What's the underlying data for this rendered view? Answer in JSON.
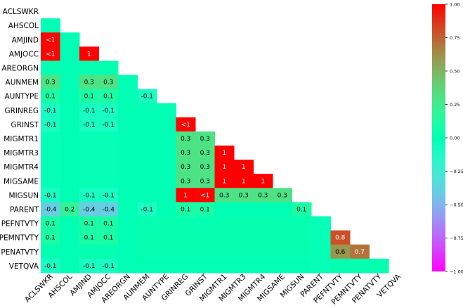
{
  "chart_data": {
    "type": "heatmap",
    "variables": [
      "ACLSWKR",
      "AHSCOL",
      "AMJIND",
      "AMJOCC",
      "AREORGN",
      "AUNMEM",
      "AUNTYPE",
      "GRINREG",
      "GRINST",
      "MIGMTR1",
      "MIGMTR3",
      "MIGMTR4",
      "MIGSAME",
      "MIGSUN",
      "PARENT",
      "PEFNTVTY",
      "PEMNTVTY",
      "PENATVTY",
      "VETQVA"
    ],
    "mask": "upper-triangle",
    "rows": [
      {
        "name": "ACLSWKR",
        "values": []
      },
      {
        "name": "AHSCOL",
        "values": [
          0
        ]
      },
      {
        "name": "AMJIND",
        "values": [
          0.99,
          0
        ]
      },
      {
        "name": "AMJOCC",
        "values": [
          0.99,
          0,
          1
        ]
      },
      {
        "name": "AREORGN",
        "values": [
          0.02,
          0,
          0.02,
          0.02
        ]
      },
      {
        "name": "AUNMEM",
        "values": [
          0.3,
          0,
          0.3,
          0.3,
          0
        ]
      },
      {
        "name": "AUNTYPE",
        "values": [
          0.1,
          0,
          0.1,
          0.1,
          0,
          -0.1
        ]
      },
      {
        "name": "GRINREG",
        "values": [
          -0.1,
          0,
          -0.1,
          -0.1,
          0,
          0,
          0
        ]
      },
      {
        "name": "GRINST",
        "values": [
          -0.1,
          0,
          -0.1,
          -0.1,
          0,
          0,
          0,
          0.99
        ]
      },
      {
        "name": "MIGMTR1",
        "values": [
          -0.02,
          0,
          -0.02,
          -0.02,
          0,
          0,
          0,
          0.3,
          0.3
        ]
      },
      {
        "name": "MIGMTR3",
        "values": [
          -0.02,
          0,
          -0.02,
          -0.02,
          0,
          0,
          0,
          0.3,
          0.3,
          1
        ]
      },
      {
        "name": "MIGMTR4",
        "values": [
          -0.02,
          0,
          -0.02,
          -0.02,
          0,
          0,
          0,
          0.3,
          0.3,
          1,
          1
        ]
      },
      {
        "name": "MIGSAME",
        "values": [
          -0.02,
          0,
          -0.02,
          -0.02,
          0,
          0,
          0,
          0.3,
          0.3,
          1,
          1,
          1
        ]
      },
      {
        "name": "MIGSUN",
        "values": [
          -0.1,
          0,
          -0.1,
          -0.1,
          0,
          0,
          0,
          1,
          0.99,
          0.3,
          0.3,
          0.3,
          0.3
        ]
      },
      {
        "name": "PARENT",
        "values": [
          -0.4,
          0.2,
          -0.4,
          -0.4,
          0,
          -0.1,
          0,
          0.1,
          0.1,
          0,
          0,
          0,
          0,
          0.1
        ]
      },
      {
        "name": "PEFNTVTY",
        "values": [
          0.1,
          0,
          0.1,
          0.1,
          0,
          0.02,
          0.02,
          0.02,
          0.02,
          0.02,
          0.02,
          0.02,
          0.02,
          0.02,
          -0.02
        ]
      },
      {
        "name": "PEMNTVTY",
        "values": [
          0.1,
          0,
          0.1,
          0.1,
          0,
          0.02,
          0.02,
          0.02,
          0.02,
          0.02,
          0.02,
          0.02,
          0.02,
          0.02,
          -0.02,
          0.8
        ]
      },
      {
        "name": "PENATVTY",
        "values": [
          0.02,
          0,
          0.02,
          0.02,
          0,
          0.02,
          0.02,
          0.02,
          0.02,
          0.02,
          0.02,
          0.02,
          0.02,
          0.02,
          -0.02,
          0.6,
          0.7
        ]
      },
      {
        "name": "VETQVA",
        "values": [
          -0.1,
          0,
          -0.1,
          -0.1,
          0,
          0,
          0,
          0,
          0,
          0,
          0,
          0,
          0,
          0,
          -0.02,
          0.02,
          0.02,
          0.02
        ]
      }
    ],
    "cell_labels": [
      {
        "row": 2,
        "col": 0,
        "text": "<1"
      },
      {
        "row": 3,
        "col": 0,
        "text": "<1"
      },
      {
        "row": 3,
        "col": 2,
        "text": "1"
      },
      {
        "row": 5,
        "col": 0,
        "text": "0.3"
      },
      {
        "row": 5,
        "col": 2,
        "text": "0.3"
      },
      {
        "row": 5,
        "col": 3,
        "text": "0.3"
      },
      {
        "row": 6,
        "col": 0,
        "text": "0.1"
      },
      {
        "row": 6,
        "col": 2,
        "text": "0.1"
      },
      {
        "row": 6,
        "col": 3,
        "text": "0.1"
      },
      {
        "row": 6,
        "col": 5,
        "text": "-0.1"
      },
      {
        "row": 7,
        "col": 0,
        "text": "-0.1"
      },
      {
        "row": 7,
        "col": 2,
        "text": "-0.1"
      },
      {
        "row": 7,
        "col": 3,
        "text": "-0.1"
      },
      {
        "row": 8,
        "col": 0,
        "text": "-0.1"
      },
      {
        "row": 8,
        "col": 2,
        "text": "-0.1"
      },
      {
        "row": 8,
        "col": 3,
        "text": "-0.1"
      },
      {
        "row": 8,
        "col": 7,
        "text": "<1"
      },
      {
        "row": 9,
        "col": 7,
        "text": "0.3"
      },
      {
        "row": 9,
        "col": 8,
        "text": "0.3"
      },
      {
        "row": 10,
        "col": 7,
        "text": "0.3"
      },
      {
        "row": 10,
        "col": 8,
        "text": "0.3"
      },
      {
        "row": 10,
        "col": 9,
        "text": "1"
      },
      {
        "row": 11,
        "col": 7,
        "text": "0.3"
      },
      {
        "row": 11,
        "col": 8,
        "text": "0.3"
      },
      {
        "row": 11,
        "col": 9,
        "text": "1"
      },
      {
        "row": 11,
        "col": 10,
        "text": "1"
      },
      {
        "row": 12,
        "col": 7,
        "text": "0.3"
      },
      {
        "row": 12,
        "col": 8,
        "text": "0.3"
      },
      {
        "row": 12,
        "col": 9,
        "text": "1"
      },
      {
        "row": 12,
        "col": 10,
        "text": "1"
      },
      {
        "row": 12,
        "col": 11,
        "text": "1"
      },
      {
        "row": 13,
        "col": 0,
        "text": "-0.1"
      },
      {
        "row": 13,
        "col": 2,
        "text": "-0.1"
      },
      {
        "row": 13,
        "col": 3,
        "text": "-0.1"
      },
      {
        "row": 13,
        "col": 7,
        "text": "1"
      },
      {
        "row": 13,
        "col": 8,
        "text": "<1"
      },
      {
        "row": 13,
        "col": 9,
        "text": "0.3"
      },
      {
        "row": 13,
        "col": 10,
        "text": "0.3"
      },
      {
        "row": 13,
        "col": 11,
        "text": "0.3"
      },
      {
        "row": 13,
        "col": 12,
        "text": "0.3"
      },
      {
        "row": 14,
        "col": 0,
        "text": "-0.4"
      },
      {
        "row": 14,
        "col": 1,
        "text": "0.2"
      },
      {
        "row": 14,
        "col": 2,
        "text": "-0.4"
      },
      {
        "row": 14,
        "col": 3,
        "text": "-0.4"
      },
      {
        "row": 14,
        "col": 5,
        "text": "-0.1"
      },
      {
        "row": 14,
        "col": 7,
        "text": "0.1"
      },
      {
        "row": 14,
        "col": 8,
        "text": "0.1"
      },
      {
        "row": 14,
        "col": 13,
        "text": "0.1"
      },
      {
        "row": 15,
        "col": 0,
        "text": "0.1"
      },
      {
        "row": 15,
        "col": 2,
        "text": "0.1"
      },
      {
        "row": 15,
        "col": 3,
        "text": "0.1"
      },
      {
        "row": 16,
        "col": 0,
        "text": "0.1"
      },
      {
        "row": 16,
        "col": 2,
        "text": "0.1"
      },
      {
        "row": 16,
        "col": 3,
        "text": "0.1"
      },
      {
        "row": 16,
        "col": 15,
        "text": "0.8"
      },
      {
        "row": 17,
        "col": 15,
        "text": "0.6"
      },
      {
        "row": 17,
        "col": 16,
        "text": "0.7"
      },
      {
        "row": 18,
        "col": 0,
        "text": "-0.1"
      },
      {
        "row": 18,
        "col": 2,
        "text": "-0.1"
      },
      {
        "row": 18,
        "col": 3,
        "text": "-0.1"
      }
    ],
    "colorbar": {
      "range": [
        -1,
        1
      ],
      "colormap": "rainbow",
      "ticks": [
        "1.00",
        "0.75",
        "0.50",
        "0.25",
        "0.00",
        "−0.25",
        "−0.50",
        "−0.75",
        "−1.00"
      ],
      "tick_values": [
        1,
        0.75,
        0.5,
        0.25,
        0,
        -0.25,
        -0.5,
        -0.75,
        -1
      ]
    }
  }
}
